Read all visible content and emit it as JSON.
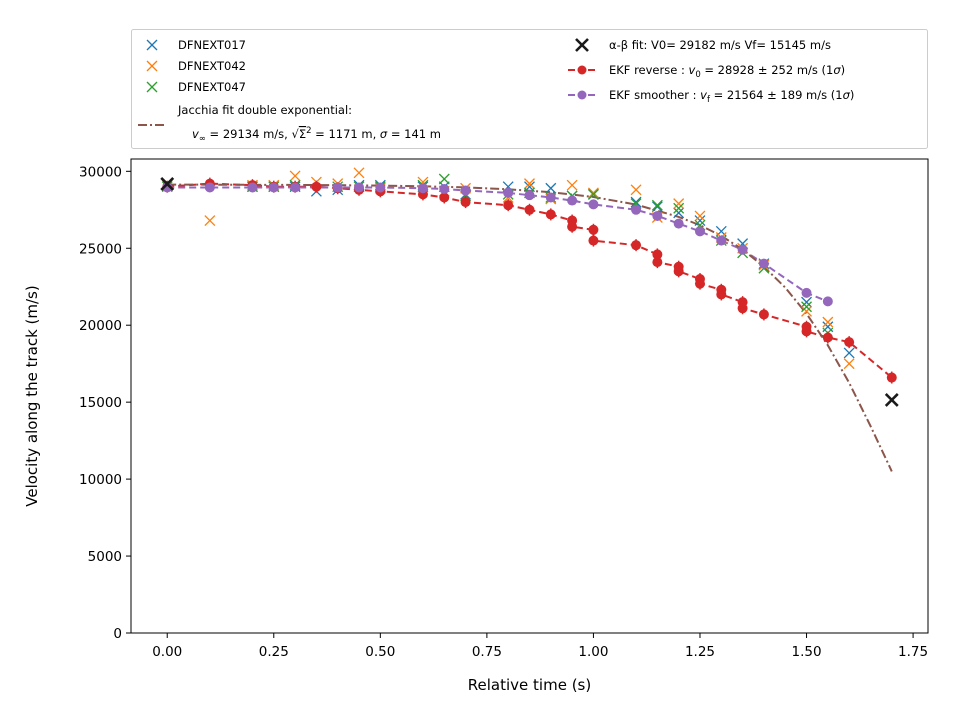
{
  "chart_data": {
    "type": "scatter",
    "xlabel": "Relative time (s)",
    "ylabel": "Velocity along the track (m/s)",
    "xlim": [
      -0.085,
      1.785
    ],
    "ylim": [
      0,
      30800
    ],
    "xticks": [
      0.0,
      0.25,
      0.5,
      0.75,
      1.0,
      1.25,
      1.5,
      1.75
    ],
    "xtick_labels": [
      "0.00",
      "0.25",
      "0.50",
      "0.75",
      "1.00",
      "1.25",
      "1.50",
      "1.75"
    ],
    "yticks": [
      0,
      5000,
      10000,
      15000,
      20000,
      25000,
      30000
    ],
    "ytick_labels": [
      "0",
      "5000",
      "10000",
      "15000",
      "20000",
      "25000",
      "30000"
    ],
    "grid": false,
    "legend_placement": "above plot, two columns",
    "marker_series": [
      {
        "name": "DFNEXT017",
        "color": "#1f77b4",
        "marker": "x",
        "x": [
          0.0,
          0.2,
          0.25,
          0.3,
          0.35,
          0.4,
          0.45,
          0.5,
          0.6,
          0.65,
          0.7,
          0.8,
          0.85,
          0.9,
          0.95,
          1.0,
          1.1,
          1.15,
          1.2,
          1.25,
          1.3,
          1.35,
          1.4,
          1.5,
          1.55,
          1.6
        ],
        "y": [
          29100,
          29000,
          29000,
          29000,
          28700,
          28800,
          29100,
          29100,
          29000,
          29000,
          28500,
          29000,
          29000,
          28900,
          28400,
          28500,
          28000,
          27700,
          27300,
          26800,
          26100,
          25300,
          24000,
          21500,
          19900,
          18200
        ]
      },
      {
        "name": "DFNEXT042",
        "color": "#ff7f0e",
        "marker": "x",
        "x": [
          0.0,
          0.1,
          0.2,
          0.25,
          0.3,
          0.35,
          0.4,
          0.45,
          0.5,
          0.6,
          0.65,
          0.7,
          0.8,
          0.85,
          0.9,
          0.95,
          1.0,
          1.1,
          1.15,
          1.2,
          1.25,
          1.3,
          1.35,
          1.4,
          1.5,
          1.55,
          1.6
        ],
        "y": [
          29100,
          26800,
          29100,
          29100,
          29700,
          29300,
          29200,
          29900,
          28900,
          29300,
          28700,
          28900,
          28300,
          29200,
          28200,
          29100,
          28600,
          28800,
          27000,
          27900,
          27100,
          25700,
          25000,
          23900,
          20900,
          20200,
          17500
        ]
      },
      {
        "name": "DFNEXT047",
        "color": "#2ca02c",
        "marker": "x",
        "x": [
          0.0,
          0.2,
          0.25,
          0.3,
          0.4,
          0.45,
          0.5,
          0.6,
          0.65,
          0.7,
          0.8,
          0.85,
          0.9,
          0.95,
          1.0,
          1.1,
          1.15,
          1.2,
          1.25,
          1.3,
          1.35,
          1.4,
          1.5,
          1.55
        ],
        "y": [
          29000,
          29000,
          29000,
          29100,
          29000,
          29000,
          29000,
          29100,
          29500,
          28400,
          28500,
          28600,
          28300,
          28400,
          28500,
          27900,
          27800,
          27600,
          26500,
          25500,
          24700,
          23700,
          21200,
          19500
        ]
      }
    ],
    "jacchia_fit": {
      "name_line1": "Jacchia fit double exponential:",
      "name_line2_prefix": "v",
      "name_line2_sub": "∞",
      "name_line2_a": " = 29134 m/s, ",
      "name_line2_b": " = 1171 m, ",
      "name_line2_sigma": "σ",
      "name_line2_c": " = 141 m",
      "sqrt_symbol": "√",
      "sqrt_content": "Σ",
      "sqrt_sup": "2",
      "color": "#8c564b",
      "x": [
        0.0,
        0.1,
        0.2,
        0.3,
        0.4,
        0.5,
        0.6,
        0.7,
        0.8,
        0.9,
        1.0,
        1.1,
        1.2,
        1.25,
        1.3,
        1.35,
        1.4,
        1.45,
        1.5,
        1.55,
        1.6,
        1.65,
        1.7
      ],
      "y": [
        29134,
        29131,
        29125,
        29115,
        29098,
        29070,
        29025,
        28952,
        28832,
        28640,
        28330,
        27835,
        27040,
        26500,
        25800,
        24920,
        23800,
        22450,
        20750,
        18700,
        16250,
        13450,
        10500
      ]
    },
    "alpha_beta_fit": {
      "label_prefix": "α-β fit: V0= 29182 m/s   Vf= 15145 m/s",
      "color": "#1a1a1a",
      "x": [
        0.0,
        1.7
      ],
      "y": [
        29182,
        15145
      ]
    },
    "ekf_reverse": {
      "label_main": "EKF reverse : ",
      "label_var": "v",
      "label_sub": "0",
      "label_rest": " =  28928 ± 252 m/s (1",
      "label_sigma": "σ",
      "label_close": ")",
      "color": "#d62728",
      "x": [
        0.0,
        0.1,
        0.2,
        0.25,
        0.3,
        0.35,
        0.4,
        0.45,
        0.5,
        0.6,
        0.65,
        0.7,
        0.8,
        0.85,
        0.9,
        0.95,
        0.95,
        1.0,
        1.0,
        1.1,
        1.15,
        1.15,
        1.2,
        1.2,
        1.25,
        1.25,
        1.3,
        1.3,
        1.35,
        1.35,
        1.4,
        1.5,
        1.5,
        1.55,
        1.6,
        1.7
      ],
      "y": [
        29000,
        29200,
        29100,
        29000,
        29000,
        29000,
        28900,
        28800,
        28700,
        28500,
        28300,
        28000,
        27800,
        27500,
        27200,
        26800,
        26400,
        26200,
        25500,
        25200,
        24600,
        24100,
        23800,
        23500,
        23000,
        22700,
        22300,
        22000,
        21500,
        21100,
        20700,
        19900,
        19600,
        19200,
        18900,
        16600
      ]
    },
    "ekf_smoother": {
      "label_main": "EKF smoother : ",
      "label_var": "v",
      "label_sub": "f",
      "label_rest": " =  21564 ± 189 m/s (1",
      "label_sigma": "σ",
      "label_close": ")",
      "color": "#9467bd",
      "x": [
        0.0,
        0.1,
        0.2,
        0.25,
        0.3,
        0.4,
        0.45,
        0.5,
        0.6,
        0.65,
        0.7,
        0.8,
        0.85,
        0.9,
        0.95,
        1.0,
        1.1,
        1.15,
        1.2,
        1.25,
        1.3,
        1.35,
        1.4,
        1.5,
        1.55
      ],
      "y": [
        28950,
        28950,
        28950,
        28950,
        28950,
        28950,
        28950,
        28950,
        28900,
        28850,
        28750,
        28600,
        28450,
        28300,
        28100,
        27850,
        27500,
        27100,
        26600,
        26100,
        25500,
        24900,
        24000,
        22100,
        21550
      ]
    }
  }
}
